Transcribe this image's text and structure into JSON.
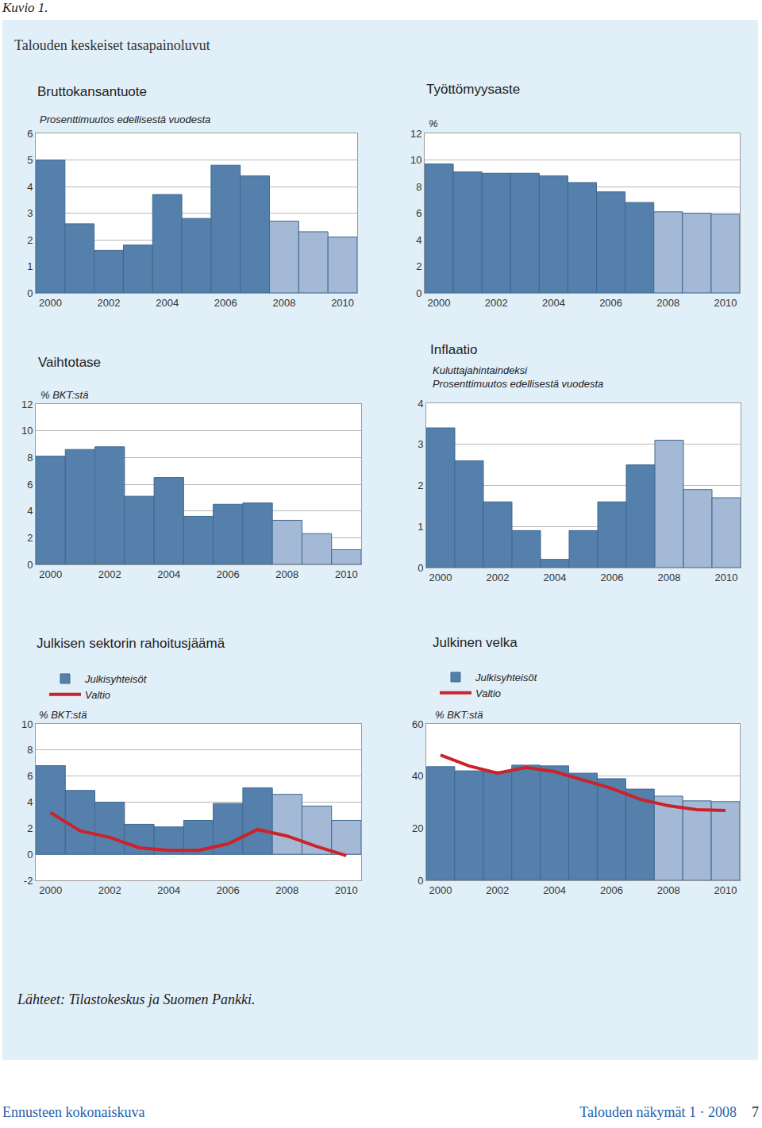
{
  "page": {
    "label": "Kuvio 1.",
    "title": "Talouden keskeiset tasapainoluvut",
    "source": "Lähteet: Tilastokeskus ja Suomen Pankki.",
    "footer_left": "Ennusteen kokonaiskuva",
    "footer_right": "Talouden näkymät 1 · 2008",
    "page_number": "7"
  },
  "chart_data": [
    {
      "type": "bar",
      "title": "Bruttokansantuote",
      "subtitle": "Prosenttimuutos edellisestä vuodesta",
      "categories": [
        "2000",
        null,
        "2002",
        null,
        "2004",
        null,
        "2006",
        null,
        "2008",
        null,
        "2010"
      ],
      "values": [
        5.0,
        2.6,
        1.6,
        1.8,
        3.7,
        2.8,
        4.8,
        4.4,
        2.7,
        2.3,
        2.1
      ],
      "colors": [
        "#5580ab",
        "#5580ab",
        "#5580ab",
        "#5580ab",
        "#5580ab",
        "#5580ab",
        "#5580ab",
        "#5580ab",
        "#a3b9d5",
        "#a3b9d5",
        "#a3b9d5"
      ],
      "ylim": [
        0,
        6
      ],
      "yticks": [
        0,
        1,
        2,
        3,
        4,
        5,
        6
      ],
      "grid": true
    },
    {
      "type": "bar",
      "title": "Työttömyysaste",
      "subtitle": "%",
      "categories": [
        "2000",
        null,
        "2002",
        null,
        "2004",
        null,
        "2006",
        null,
        "2008",
        null,
        "2010"
      ],
      "values": [
        9.7,
        9.1,
        9.0,
        9.0,
        8.8,
        8.3,
        7.6,
        6.8,
        6.1,
        6.0,
        5.9
      ],
      "colors": [
        "#5580ab",
        "#5580ab",
        "#5580ab",
        "#5580ab",
        "#5580ab",
        "#5580ab",
        "#5580ab",
        "#5580ab",
        "#a3b9d5",
        "#a3b9d5",
        "#a3b9d5"
      ],
      "ylim": [
        0,
        12
      ],
      "yticks": [
        0,
        2,
        4,
        6,
        8,
        10,
        12
      ],
      "grid": true
    },
    {
      "type": "bar",
      "title": "Vaihtotase",
      "subtitle": "% BKT:stä",
      "categories": [
        "2000",
        null,
        "2002",
        null,
        "2004",
        null,
        "2006",
        null,
        "2008",
        null,
        "2010"
      ],
      "values": [
        8.1,
        8.6,
        8.8,
        5.1,
        6.5,
        3.6,
        4.5,
        4.6,
        3.3,
        2.3,
        1.1
      ],
      "colors": [
        "#5580ab",
        "#5580ab",
        "#5580ab",
        "#5580ab",
        "#5580ab",
        "#5580ab",
        "#5580ab",
        "#5580ab",
        "#a3b9d5",
        "#a3b9d5",
        "#a3b9d5"
      ],
      "ylim": [
        0,
        12
      ],
      "yticks": [
        0,
        2,
        4,
        6,
        8,
        10,
        12
      ],
      "grid": true
    },
    {
      "type": "bar",
      "title": "Inflaatio",
      "subtitle": [
        "Kuluttajahintaindeksi",
        "Prosenttimuutos edellisestä vuodesta"
      ],
      "categories": [
        "2000",
        null,
        "2002",
        null,
        "2004",
        null,
        "2006",
        null,
        "2008",
        null,
        "2010"
      ],
      "values": [
        3.4,
        2.6,
        1.6,
        0.9,
        0.2,
        0.9,
        1.6,
        2.5,
        3.1,
        1.9,
        1.7
      ],
      "colors": [
        "#5580ab",
        "#5580ab",
        "#5580ab",
        "#5580ab",
        "#5580ab",
        "#5580ab",
        "#5580ab",
        "#5580ab",
        "#a3b9d5",
        "#a3b9d5",
        "#a3b9d5"
      ],
      "ylim": [
        0,
        4
      ],
      "yticks": [
        0,
        1,
        2,
        3,
        4
      ],
      "grid": true
    },
    {
      "type": "bar",
      "title": "Julkisen sektorin rahoitusjäämä",
      "subtitle": "% BKT:stä",
      "categories": [
        "2000",
        null,
        "2002",
        null,
        "2004",
        null,
        "2006",
        null,
        "2008",
        null,
        "2010"
      ],
      "series": [
        {
          "name": "Julkisyhteisöt",
          "type": "bar",
          "colors": [
            "#5580ab",
            "#5580ab",
            "#5580ab",
            "#5580ab",
            "#5580ab",
            "#5580ab",
            "#5580ab",
            "#5580ab",
            "#a3b9d5",
            "#a3b9d5",
            "#a3b9d5"
          ],
          "values": [
            6.8,
            4.9,
            4.0,
            2.3,
            2.1,
            2.6,
            3.9,
            5.1,
            4.6,
            3.7,
            2.6
          ]
        },
        {
          "name": "Valtio",
          "type": "line",
          "color": "#cc2229",
          "values": [
            3.2,
            1.8,
            1.3,
            0.5,
            0.3,
            0.3,
            0.8,
            1.9,
            1.4,
            0.6,
            -0.1
          ]
        }
      ],
      "ylim": [
        -2,
        10
      ],
      "yticks": [
        -2,
        0,
        2,
        4,
        6,
        8,
        10
      ],
      "grid": true,
      "legend": "upper left"
    },
    {
      "type": "bar",
      "title": "Julkinen velka",
      "subtitle": "% BKT:stä",
      "categories": [
        "2000",
        null,
        "2002",
        null,
        "2004",
        null,
        "2006",
        null,
        "2008",
        null,
        "2010"
      ],
      "series": [
        {
          "name": "Julkisyhteisöt",
          "type": "bar",
          "colors": [
            "#5580ab",
            "#5580ab",
            "#5580ab",
            "#5580ab",
            "#5580ab",
            "#5580ab",
            "#5580ab",
            "#5580ab",
            "#a3b9d5",
            "#a3b9d5",
            "#a3b9d5"
          ],
          "values": [
            43.6,
            42.0,
            41.7,
            44.2,
            43.9,
            41.1,
            39.0,
            35.0,
            32.3,
            30.5,
            30.2
          ]
        },
        {
          "name": "Valtio",
          "type": "line",
          "color": "#cc2229",
          "values": [
            48.1,
            43.9,
            41.1,
            43.3,
            41.7,
            38.4,
            35.3,
            31.1,
            28.6,
            27.1,
            26.8
          ]
        }
      ],
      "ylim": [
        0,
        60
      ],
      "yticks": [
        0,
        20,
        40,
        60
      ],
      "grid": true,
      "legend": "upper left"
    }
  ]
}
